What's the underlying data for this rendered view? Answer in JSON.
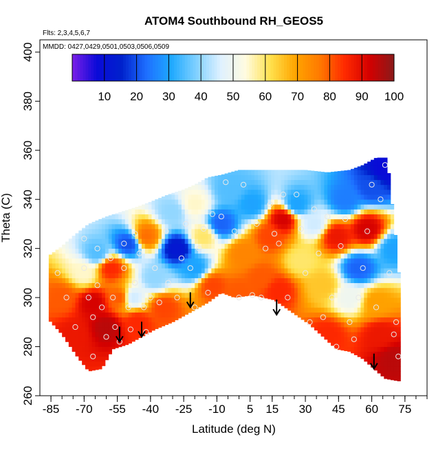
{
  "chart_data": {
    "type": "heatmap",
    "title": "ATOM4 Southbound RH_GEOS5",
    "subtitle_flights": "Flts: 2,3,4,5,6,7",
    "subtitle_dates": "MMDD: 0427,0429,0501,0503,0506,0509",
    "xlabel": "Latitude (deg N)",
    "ylabel": "Theta (C)",
    "xlim": [
      -90,
      85
    ],
    "ylim": [
      260,
      405
    ],
    "x_ticks": [
      "-85",
      "-70",
      "-55",
      "-40",
      "-25",
      "-10",
      "5",
      "15",
      "30",
      "45",
      "60",
      "75"
    ],
    "x_tick_values": [
      -85,
      -70,
      -55,
      -40,
      -25,
      -10,
      5,
      15,
      30,
      45,
      60,
      75
    ],
    "x_minor_step": 5,
    "y_ticks": [
      "260",
      "280",
      "300",
      "320",
      "340",
      "360",
      "380",
      "400"
    ],
    "y_tick_values": [
      260,
      280,
      300,
      320,
      340,
      360,
      380,
      400
    ],
    "colorbar": {
      "min": 0,
      "max": 100,
      "ticks": [
        "10",
        "20",
        "30",
        "40",
        "50",
        "60",
        "70",
        "80",
        "90",
        "100"
      ],
      "tick_values": [
        10,
        20,
        30,
        40,
        50,
        60,
        70,
        80,
        90,
        100
      ],
      "colors": [
        "#7b1fe8",
        "#0a0ad8",
        "#0022cc",
        "#1e6fff",
        "#1ea9ff",
        "#7fd0ff",
        "#dff1ff",
        "#fffbe0",
        "#ffe14d",
        "#ffa500",
        "#ff7a00",
        "#ff2a00",
        "#d40000",
        "#8a1a1a"
      ]
    },
    "envelope_top": [
      [
        -86,
        317
      ],
      [
        -80,
        321
      ],
      [
        -75,
        325
      ],
      [
        -68,
        330
      ],
      [
        -60,
        333
      ],
      [
        -53,
        335
      ],
      [
        -46,
        337
      ],
      [
        -40,
        339
      ],
      [
        -32,
        342
      ],
      [
        -25,
        344
      ],
      [
        -20,
        346
      ],
      [
        -14,
        349
      ],
      [
        -8,
        350
      ],
      [
        0,
        352
      ],
      [
        10,
        352
      ],
      [
        20,
        352
      ],
      [
        30,
        352
      ],
      [
        40,
        351
      ],
      [
        50,
        352
      ],
      [
        56,
        354
      ],
      [
        62,
        357
      ],
      [
        67,
        357
      ],
      [
        72,
        315
      ],
      [
        73,
        296
      ]
    ],
    "envelope_bottom": [
      [
        -86,
        291
      ],
      [
        -80,
        285
      ],
      [
        -74,
        277
      ],
      [
        -68,
        270
      ],
      [
        -62,
        271
      ],
      [
        -57,
        279
      ],
      [
        -50,
        281
      ],
      [
        -44,
        284
      ],
      [
        -38,
        287
      ],
      [
        -30,
        290
      ],
      [
        -22,
        294
      ],
      [
        -14,
        298
      ],
      [
        -8,
        302
      ],
      [
        -2,
        300
      ],
      [
        6,
        301
      ],
      [
        16,
        299
      ],
      [
        24,
        294
      ],
      [
        32,
        289
      ],
      [
        38,
        284
      ],
      [
        44,
        279
      ],
      [
        50,
        278
      ],
      [
        56,
        275
      ],
      [
        61,
        271
      ],
      [
        66,
        267
      ],
      [
        72,
        266
      ]
    ],
    "rh_field": [
      {
        "x": -80,
        "y": 300,
        "v": 80
      },
      {
        "x": -74,
        "y": 285,
        "v": 88
      },
      {
        "x": -70,
        "y": 310,
        "v": 55
      },
      {
        "x": -66,
        "y": 298,
        "v": 92
      },
      {
        "x": -60,
        "y": 288,
        "v": 95
      },
      {
        "x": -64,
        "y": 318,
        "v": 35
      },
      {
        "x": -58,
        "y": 312,
        "v": 85
      },
      {
        "x": -54,
        "y": 300,
        "v": 80
      },
      {
        "x": -50,
        "y": 322,
        "v": 20
      },
      {
        "x": -48,
        "y": 300,
        "v": 45
      },
      {
        "x": -46,
        "y": 290,
        "v": 85
      },
      {
        "x": -42,
        "y": 325,
        "v": 78
      },
      {
        "x": -38,
        "y": 308,
        "v": 40
      },
      {
        "x": -34,
        "y": 296,
        "v": 82
      },
      {
        "x": -28,
        "y": 320,
        "v": 12
      },
      {
        "x": -30,
        "y": 335,
        "v": 40
      },
      {
        "x": -20,
        "y": 312,
        "v": 30
      },
      {
        "x": -20,
        "y": 338,
        "v": 55
      },
      {
        "x": -16,
        "y": 325,
        "v": 60
      },
      {
        "x": -12,
        "y": 305,
        "v": 82
      },
      {
        "x": -8,
        "y": 330,
        "v": 22
      },
      {
        "x": -4,
        "y": 344,
        "v": 35
      },
      {
        "x": 2,
        "y": 318,
        "v": 75
      },
      {
        "x": 6,
        "y": 338,
        "v": 30
      },
      {
        "x": 10,
        "y": 308,
        "v": 80
      },
      {
        "x": 14,
        "y": 325,
        "v": 82
      },
      {
        "x": 20,
        "y": 332,
        "v": 92
      },
      {
        "x": 18,
        "y": 303,
        "v": 85
      },
      {
        "x": 26,
        "y": 338,
        "v": 30
      },
      {
        "x": 28,
        "y": 315,
        "v": 60
      },
      {
        "x": 34,
        "y": 330,
        "v": 45
      },
      {
        "x": 38,
        "y": 305,
        "v": 65
      },
      {
        "x": 44,
        "y": 325,
        "v": 88
      },
      {
        "x": 48,
        "y": 340,
        "v": 25
      },
      {
        "x": 50,
        "y": 300,
        "v": 50
      },
      {
        "x": 54,
        "y": 312,
        "v": 22
      },
      {
        "x": 58,
        "y": 328,
        "v": 92
      },
      {
        "x": 60,
        "y": 345,
        "v": 20
      },
      {
        "x": 62,
        "y": 298,
        "v": 70
      },
      {
        "x": 64,
        "y": 285,
        "v": 88
      },
      {
        "x": 66,
        "y": 352,
        "v": 8
      },
      {
        "x": 70,
        "y": 275,
        "v": 95
      },
      {
        "x": 70,
        "y": 320,
        "v": 30
      },
      {
        "x": 40,
        "y": 285,
        "v": 85
      },
      {
        "x": 0,
        "y": 302,
        "v": 80
      }
    ],
    "obs_points": [
      [
        -82,
        310
      ],
      [
        -78,
        300
      ],
      [
        -74,
        288
      ],
      [
        -70,
        324
      ],
      [
        -70,
        312
      ],
      [
        -68,
        300
      ],
      [
        -66,
        292
      ],
      [
        -66,
        276
      ],
      [
        -64,
        320
      ],
      [
        -64,
        305
      ],
      [
        -62,
        296
      ],
      [
        -60,
        284
      ],
      [
        -58,
        316
      ],
      [
        -57,
        300
      ],
      [
        -56,
        288
      ],
      [
        -54,
        282
      ],
      [
        -52,
        322
      ],
      [
        -52,
        312
      ],
      [
        -50,
        296
      ],
      [
        -49,
        287
      ],
      [
        -47,
        326
      ],
      [
        -47,
        306
      ],
      [
        -45,
        318
      ],
      [
        -43,
        296
      ],
      [
        -42,
        286
      ],
      [
        -40,
        300
      ],
      [
        -38,
        312
      ],
      [
        -36,
        298
      ],
      [
        -33,
        327
      ],
      [
        -32,
        306
      ],
      [
        -28,
        300
      ],
      [
        -26,
        316
      ],
      [
        -24,
        330
      ],
      [
        -22,
        312
      ],
      [
        -20,
        296
      ],
      [
        -18,
        320
      ],
      [
        -16,
        328
      ],
      [
        -14,
        302
      ],
      [
        -12,
        334
      ],
      [
        -8,
        333
      ],
      [
        -6,
        347
      ],
      [
        -2,
        327
      ],
      [
        0,
        300
      ],
      [
        2,
        346
      ],
      [
        6,
        301
      ],
      [
        8,
        330
      ],
      [
        10,
        300
      ],
      [
        12,
        320
      ],
      [
        14,
        338
      ],
      [
        16,
        326
      ],
      [
        18,
        322
      ],
      [
        20,
        342
      ],
      [
        22,
        300
      ],
      [
        26,
        342
      ],
      [
        28,
        328
      ],
      [
        30,
        310
      ],
      [
        32,
        290
      ],
      [
        34,
        336
      ],
      [
        36,
        318
      ],
      [
        38,
        292
      ],
      [
        40,
        333
      ],
      [
        42,
        300
      ],
      [
        44,
        280
      ],
      [
        46,
        321
      ],
      [
        48,
        332
      ],
      [
        50,
        290
      ],
      [
        52,
        283
      ],
      [
        54,
        300
      ],
      [
        56,
        312
      ],
      [
        58,
        327
      ],
      [
        60,
        346
      ],
      [
        62,
        296
      ],
      [
        64,
        340
      ],
      [
        66,
        354
      ],
      [
        68,
        310
      ],
      [
        70,
        285
      ],
      [
        71,
        290
      ],
      [
        72,
        276
      ]
    ],
    "arrows": [
      [
        -54,
        288
      ],
      [
        -44,
        290
      ],
      [
        -22,
        302
      ],
      [
        17,
        299
      ],
      [
        61,
        277
      ]
    ]
  }
}
